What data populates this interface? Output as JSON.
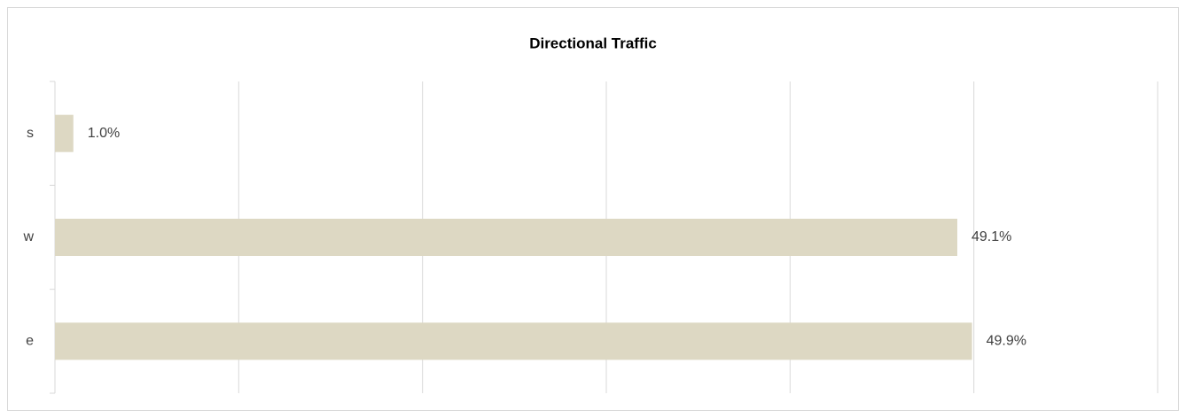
{
  "chart_data": {
    "type": "bar",
    "orientation": "horizontal",
    "title": "Directional Traffic",
    "categories": [
      "s",
      "w",
      "e"
    ],
    "values": [
      1.0,
      49.1,
      49.9
    ],
    "value_labels": [
      "1.0%",
      "49.1%",
      "49.9%"
    ],
    "color": "#ddd8c3",
    "xlim": [
      0,
      60
    ],
    "xticks": [
      0,
      10,
      20,
      30,
      40,
      50,
      60
    ],
    "grid": true
  }
}
